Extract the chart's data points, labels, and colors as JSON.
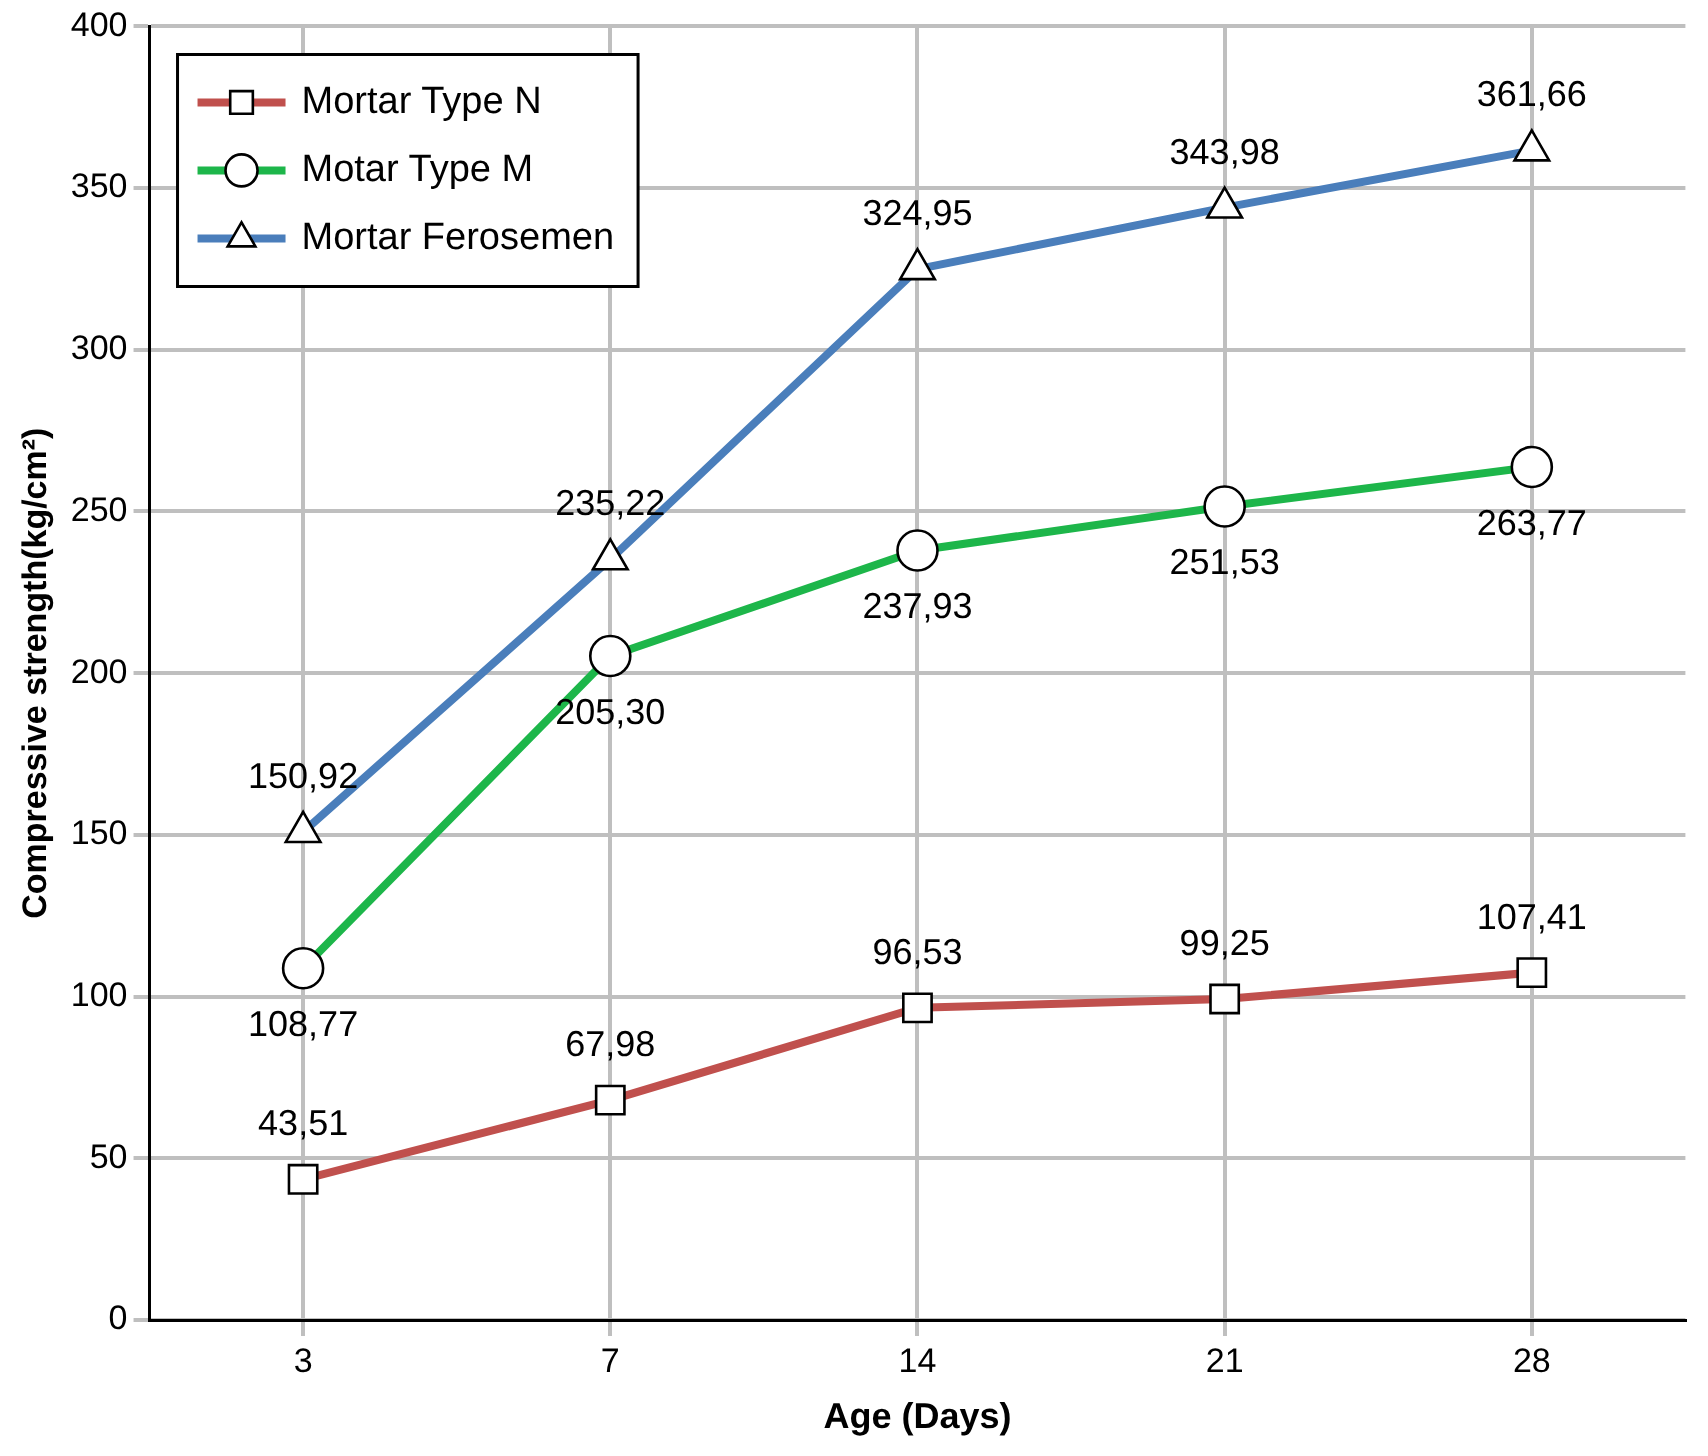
{
  "chart_data": {
    "type": "line",
    "xlabel": "Age (Days)",
    "ylabel": "Compressive strength(kg/cm²)",
    "categories": [
      "3",
      "7",
      "14",
      "21",
      "28"
    ],
    "ylim": [
      0,
      400
    ],
    "yticks": [
      0,
      50,
      100,
      150,
      200,
      250,
      300,
      350,
      400
    ],
    "grid": true,
    "legend": "top left",
    "series": [
      {
        "name": "Mortar Type N",
        "color": "#c0504d",
        "marker": "square",
        "values": [
          43.51,
          67.98,
          96.53,
          99.25,
          107.41
        ],
        "value_labels": [
          "43,51",
          "67,98",
          "96,53",
          "99,25",
          "107,41"
        ]
      },
      {
        "name": "Motar Type M",
        "color": "#1db64a",
        "marker": "circle",
        "values": [
          108.77,
          205.3,
          237.93,
          251.53,
          263.77
        ],
        "value_labels": [
          "108,77",
          "205,30",
          "237,93",
          "251,53",
          "263,77"
        ]
      },
      {
        "name": "Mortar Ferosemen",
        "color": "#4a7ebb",
        "marker": "triangle",
        "values": [
          150.92,
          235.22,
          324.95,
          343.98,
          361.66
        ],
        "value_labels": [
          "150,92",
          "235,22",
          "324,95",
          "343,98",
          "361,66"
        ]
      }
    ]
  }
}
